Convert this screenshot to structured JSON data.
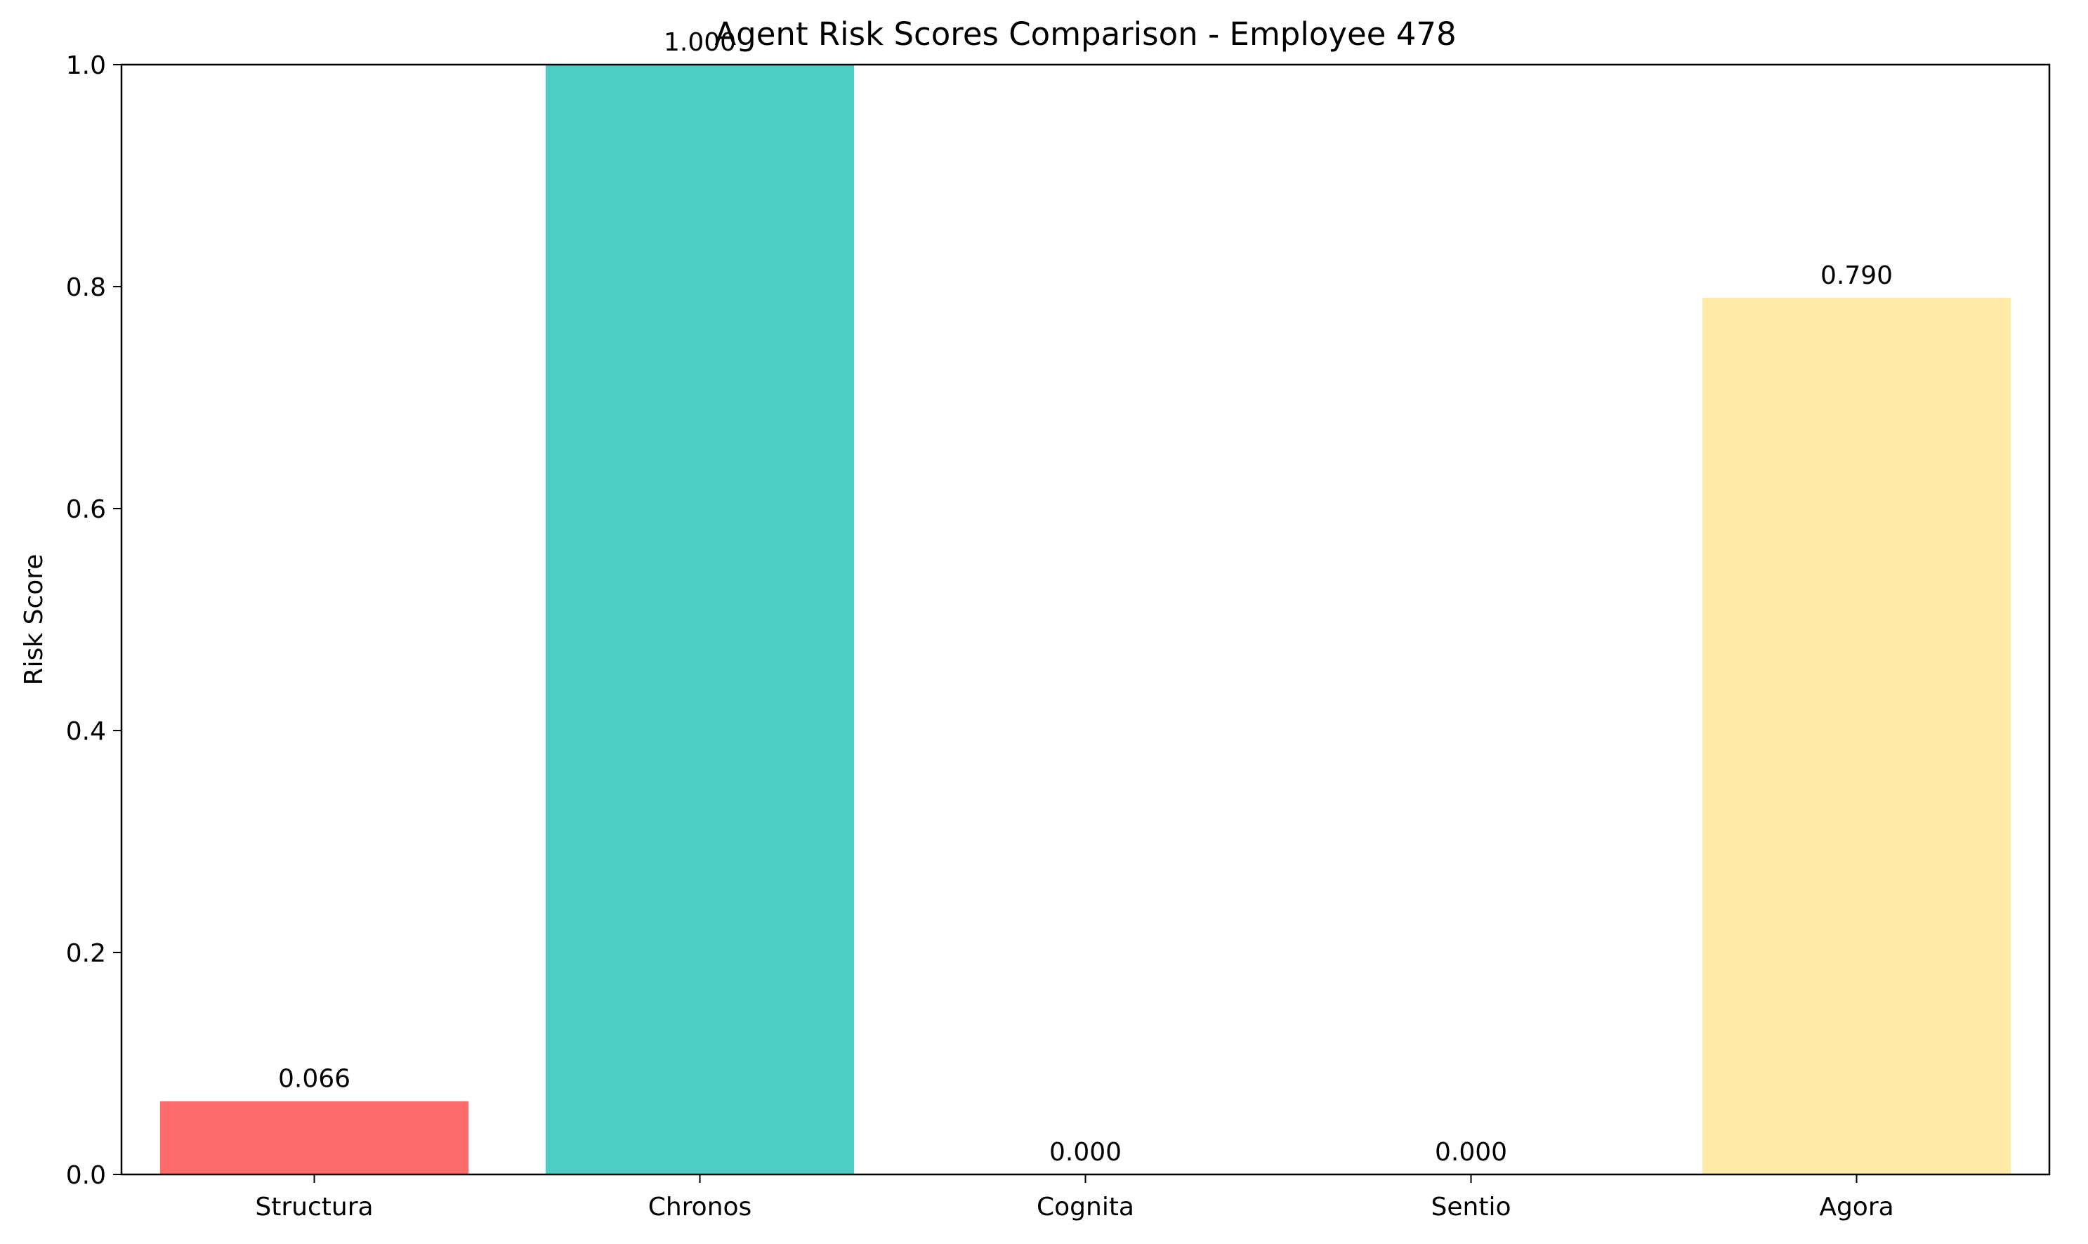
{
  "chart_data": {
    "type": "bar",
    "title": "Agent Risk Scores Comparison - Employee 478",
    "xlabel": "",
    "ylabel": "Risk Score",
    "ylim": [
      0,
      1.0
    ],
    "yticks": [
      0.0,
      0.2,
      0.4,
      0.6,
      0.8,
      1.0
    ],
    "ytick_labels": [
      "0.0",
      "0.2",
      "0.4",
      "0.6",
      "0.8",
      "1.0"
    ],
    "grid": false,
    "categories": [
      "Structura",
      "Chronos",
      "Cognita",
      "Sentio",
      "Agora"
    ],
    "values": [
      0.066,
      1.0,
      0.0,
      0.0,
      0.79
    ],
    "value_labels": [
      "0.066",
      "1.000",
      "0.000",
      "0.000",
      "0.790"
    ],
    "colors": [
      "#ff6b6b",
      "#4ecdc4",
      "#45b7d1",
      "#96ceb4",
      "#ffeaa7"
    ]
  }
}
